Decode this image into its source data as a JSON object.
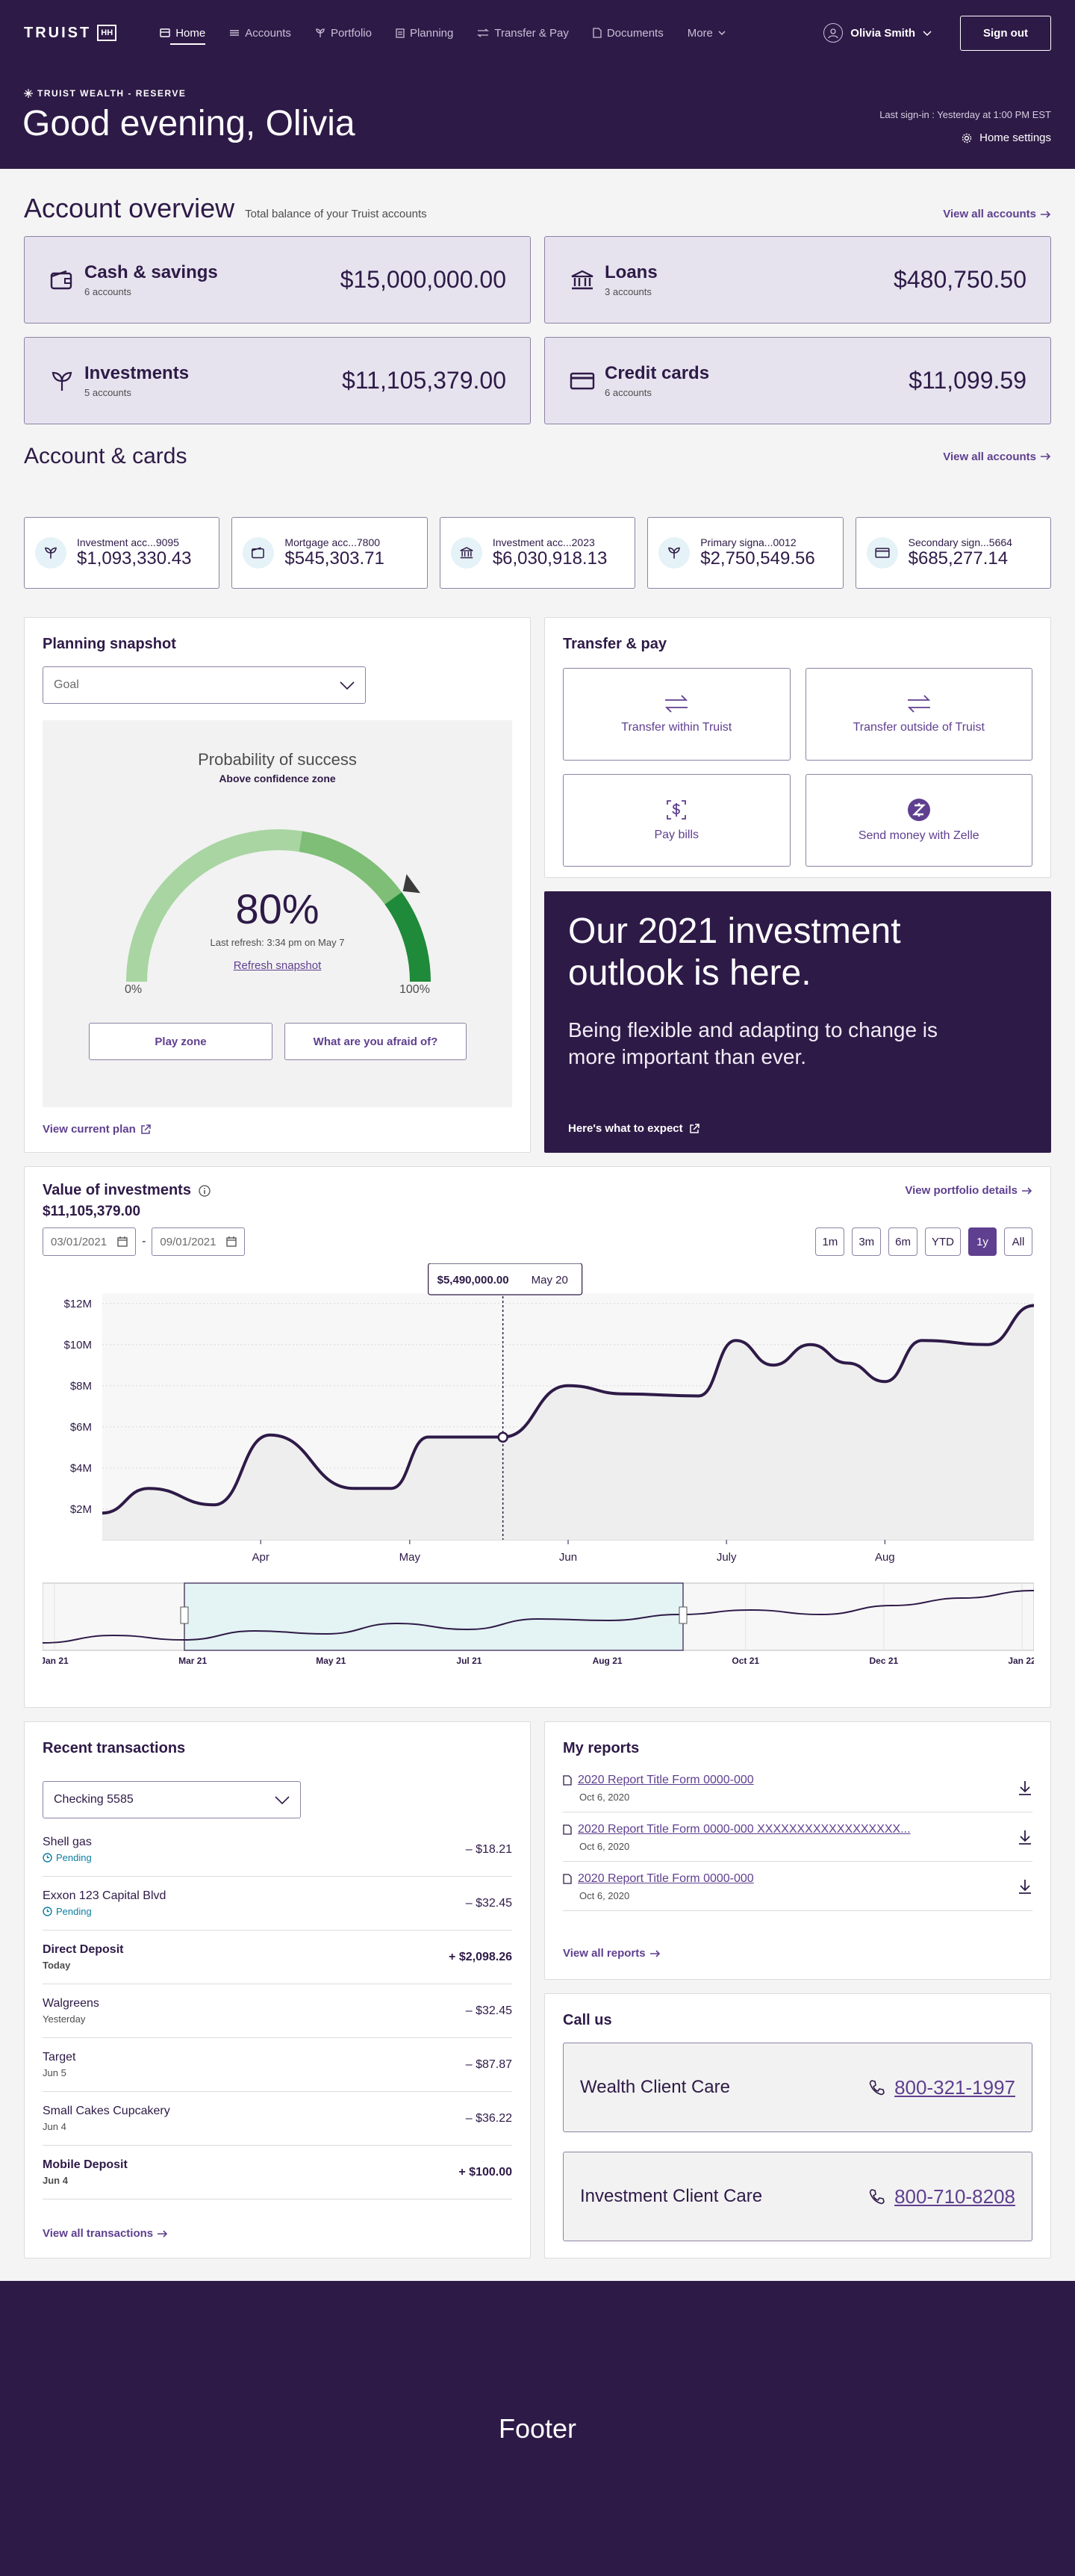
{
  "brand": {
    "logo_text": "TRUIST",
    "logo_mark": "HH"
  },
  "nav": {
    "items": [
      {
        "label": "Home",
        "icon": "home-icon",
        "active": true
      },
      {
        "label": "Accounts",
        "icon": "accounts-icon",
        "active": false
      },
      {
        "label": "Portfolio",
        "icon": "portfolio-icon",
        "active": false
      },
      {
        "label": "Planning",
        "icon": "planning-icon",
        "active": false
      },
      {
        "label": "Transfer & Pay",
        "icon": "transfer-icon",
        "active": false
      },
      {
        "label": "Documents",
        "icon": "document-icon",
        "active": false
      },
      {
        "label": "More",
        "icon": "chevron-down-icon",
        "active": false
      }
    ],
    "user_name": "Olivia Smith",
    "sign_out": "Sign out"
  },
  "header": {
    "program": "TRUIST WEALTH - RESERVE",
    "greeting": "Good evening, Olivia",
    "last_signin": "Last sign-in : Yesterday at 1:00 PM EST",
    "home_settings": "Home settings"
  },
  "overview": {
    "title": "Account overview",
    "subtitle": "Total balance of your Truist accounts",
    "view_all": "View all accounts",
    "balances": [
      {
        "name": "Cash & savings",
        "count": "6 accounts",
        "value": "$15,000,000.00",
        "icon": "wallet-icon"
      },
      {
        "name": "Loans",
        "count": "3 accounts",
        "value": "$480,750.50",
        "icon": "bank-icon"
      },
      {
        "name": "Investments",
        "count": "5 accounts",
        "value": "$11,105,379.00",
        "icon": "sprout-icon"
      },
      {
        "name": "Credit cards",
        "count": "6 accounts",
        "value": "$11,099.59",
        "icon": "credit-card-icon"
      }
    ]
  },
  "accounts_cards": {
    "title": "Account & cards",
    "view_all": "View all accounts",
    "items": [
      {
        "name": "Investment acc...9095",
        "value": "$1,093,330.43",
        "icon": "sprout-icon"
      },
      {
        "name": "Mortgage acc...7800",
        "value": "$545,303.71",
        "icon": "wallet-icon"
      },
      {
        "name": "Investment acc...2023",
        "value": "$6,030,918.13",
        "icon": "bank-icon"
      },
      {
        "name": "Primary signa...0012",
        "value": "$2,750,549.56",
        "icon": "sprout-icon"
      },
      {
        "name": "Secondary sign...5664",
        "value": "$685,277.14",
        "icon": "credit-card-icon"
      }
    ]
  },
  "planning": {
    "title": "Planning snapshot",
    "select_value": "Goal",
    "gauge_title": "Probability of success",
    "gauge_subtitle": "Above confidence zone",
    "percent": "80%",
    "percent_value": 80,
    "refresh_info": "Last refresh: 3:34 pm on May 7",
    "refresh_link": "Refresh snapshot",
    "min_label": "0%",
    "max_label": "100%",
    "play_zone": "Play zone",
    "afraid": "What are you afraid of?",
    "view_plan": "View current plan"
  },
  "transfer": {
    "title": "Transfer & pay",
    "actions": [
      {
        "label": "Transfer within Truist",
        "icon": "transfer-arrows-icon"
      },
      {
        "label": "Transfer outside of Truist",
        "icon": "transfer-arrows-icon"
      },
      {
        "label": "Pay bills",
        "icon": "dollar-icon"
      },
      {
        "label": "Send money with Zelle",
        "icon": "zelle-icon"
      }
    ]
  },
  "promo": {
    "headline": "Our 2021 investment outlook is here.",
    "body": "Being flexible and adapting to change is more important than ever.",
    "cta": "Here's what to expect"
  },
  "investments": {
    "title": "Value of investments",
    "value": "$11,105,379.00",
    "portfolio_link": "View portfolio details",
    "date_from": "03/01/2021",
    "date_to": "09/01/2021",
    "date_sep": "-",
    "ranges": [
      "1m",
      "3m",
      "6m",
      "YTD",
      "1y",
      "All"
    ],
    "active_range": "1y",
    "tooltip_value": "$5,490,000.00",
    "tooltip_date": "May 20"
  },
  "chart_data": {
    "type": "area",
    "title": "Value of investments",
    "y_ticks": [
      "$2M",
      "$4M",
      "$6M",
      "$8M",
      "$10M",
      "$12M"
    ],
    "y_tick_values": [
      2,
      4,
      6,
      8,
      10,
      12
    ],
    "x_ticks": [
      "Apr",
      "May",
      "Jun",
      "July",
      "Aug"
    ],
    "x_tick_values": [
      0.17,
      0.33,
      0.5,
      0.67,
      0.84
    ],
    "ylim": [
      0.5,
      12.5
    ],
    "grid": true,
    "y_unit": "$M",
    "points": [
      [
        0.0,
        1.8
      ],
      [
        0.05,
        3.0
      ],
      [
        0.12,
        2.2
      ],
      [
        0.18,
        5.6
      ],
      [
        0.27,
        3.0
      ],
      [
        0.31,
        3.0
      ],
      [
        0.35,
        5.5
      ],
      [
        0.43,
        5.5
      ],
      [
        0.5,
        8.0
      ],
      [
        0.56,
        7.6
      ],
      [
        0.64,
        7.5
      ],
      [
        0.68,
        10.2
      ],
      [
        0.72,
        9.0
      ],
      [
        0.76,
        10.0
      ],
      [
        0.8,
        9.1
      ],
      [
        0.84,
        8.2
      ],
      [
        0.88,
        10.2
      ],
      [
        0.95,
        10.0
      ],
      [
        1.0,
        11.9
      ]
    ],
    "highlight_x": 0.43,
    "highlight_y": 5.49,
    "navigator_labels": [
      "Jan 21",
      "Mar 21",
      "May 21",
      "Jul 21",
      "Aug 21",
      "Oct 21",
      "Dec 21",
      "Jan 22"
    ]
  },
  "transactions": {
    "title": "Recent transactions",
    "account": "Checking 5585",
    "view_all": "View all transactions",
    "items": [
      {
        "name": "Shell gas",
        "sub": "Pending",
        "amount": "– $18.21",
        "pending": true,
        "bold": false
      },
      {
        "name": "Exxon 123 Capital Blvd",
        "sub": "Pending",
        "amount": "– $32.45",
        "pending": true,
        "bold": false
      },
      {
        "name": "Direct Deposit",
        "sub": "Today",
        "amount": "+ $2,098.26",
        "pending": false,
        "bold": true
      },
      {
        "name": "Walgreens",
        "sub": "Yesterday",
        "amount": "– $32.45",
        "pending": false,
        "bold": false
      },
      {
        "name": "Target",
        "sub": "Jun 5",
        "amount": "– $87.87",
        "pending": false,
        "bold": false
      },
      {
        "name": "Small Cakes Cupcakery",
        "sub": "Jun 4",
        "amount": "– $36.22",
        "pending": false,
        "bold": false
      },
      {
        "name": "Mobile Deposit",
        "sub": "Jun 4",
        "amount": "+ $100.00",
        "pending": false,
        "bold": true
      }
    ]
  },
  "reports": {
    "title": "My reports",
    "items": [
      {
        "name": "2020 Report Title Form 0000-000",
        "date": "Oct 6, 2020"
      },
      {
        "name": "2020 Report Title Form 0000-000 XXXXXXXXXXXXXXXXXX...",
        "date": "Oct 6, 2020"
      },
      {
        "name": "2020 Report Title Form 0000-000",
        "date": "Oct 6, 2020"
      }
    ],
    "view_all": "View all reports"
  },
  "call": {
    "title": "Call us",
    "items": [
      {
        "name": "Wealth Client Care",
        "number": "800-321-1997"
      },
      {
        "name": "Investment Client Care",
        "number": "800-710-8208"
      }
    ]
  },
  "footer": {
    "label": "Footer"
  },
  "colors": {
    "brand": "#2e1a47",
    "accent": "#5f3f8f",
    "gauge_light": "#a8d5a2",
    "gauge_mid": "#7ebe76",
    "gauge_dark": "#1f8a3a",
    "pending": "#0c7ea2"
  }
}
